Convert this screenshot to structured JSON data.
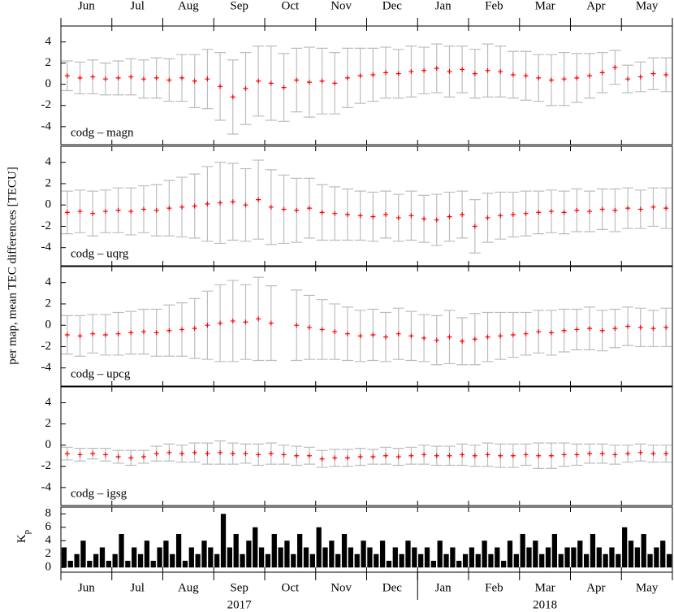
{
  "y_label": "per map, mean TEC differences [TECU]",
  "x_axis": {
    "xlim": [
      0,
      12
    ],
    "xticks": [
      0,
      1,
      2,
      3,
      4,
      5,
      6,
      7,
      8,
      9,
      10,
      11,
      12
    ],
    "month_labels": [
      {
        "value": 0.5,
        "label": "Jun"
      },
      {
        "value": 1.5,
        "label": "Jul"
      },
      {
        "value": 2.5,
        "label": "Aug"
      },
      {
        "value": 3.5,
        "label": "Sep"
      },
      {
        "value": 4.5,
        "label": "Oct"
      },
      {
        "value": 5.5,
        "label": "Nov"
      },
      {
        "value": 6.5,
        "label": "Dec"
      },
      {
        "value": 7.5,
        "label": "Jan"
      },
      {
        "value": 8.5,
        "label": "Feb"
      },
      {
        "value": 9.5,
        "label": "Mar"
      },
      {
        "value": 10.5,
        "label": "Apr"
      },
      {
        "value": 11.5,
        "label": "May"
      }
    ],
    "years": [
      {
        "value": 3.5,
        "label": "2017"
      },
      {
        "value": 9.5,
        "label": "2018"
      }
    ],
    "year_divider": 7
  },
  "chart_data": [
    {
      "type": "errorbar",
      "label": "codg – magn",
      "color": "#ff0000",
      "error_color": "#bdbdbd",
      "ylim": [
        -5.7,
        5.5
      ],
      "yticks": [
        -4,
        -2,
        0,
        2,
        4
      ],
      "x": [
        0.125,
        0.375,
        0.625,
        0.875,
        1.125,
        1.375,
        1.625,
        1.875,
        2.125,
        2.375,
        2.625,
        2.875,
        3.125,
        3.375,
        3.625,
        3.875,
        4.125,
        4.375,
        4.625,
        4.875,
        5.125,
        5.375,
        5.625,
        5.875,
        6.125,
        6.375,
        6.625,
        6.875,
        7.125,
        7.375,
        7.625,
        7.875,
        8.125,
        8.375,
        8.625,
        8.875,
        9.125,
        9.375,
        9.625,
        9.875,
        10.125,
        10.375,
        10.625,
        10.875,
        11.125,
        11.375,
        11.625,
        11.875
      ],
      "values": [
        0.8,
        0.6,
        0.7,
        0.5,
        0.6,
        0.7,
        0.5,
        0.6,
        0.4,
        0.6,
        0.3,
        0.5,
        -0.2,
        -1.2,
        -0.4,
        0.3,
        0.1,
        -0.3,
        0.4,
        0.2,
        0.3,
        0.1,
        0.6,
        0.8,
        0.9,
        1.1,
        1.0,
        1.2,
        1.3,
        1.5,
        1.2,
        1.4,
        1.0,
        1.3,
        1.2,
        0.9,
        0.8,
        0.6,
        0.4,
        0.5,
        0.6,
        0.8,
        1.1,
        1.6,
        0.5,
        0.7,
        1.0,
        0.9
      ],
      "errors": [
        1.4,
        1.5,
        1.6,
        1.5,
        1.6,
        1.7,
        1.8,
        1.9,
        2.0,
        2.2,
        2.5,
        2.8,
        3.2,
        3.5,
        3.4,
        3.3,
        3.5,
        3.2,
        3.0,
        3.3,
        3.1,
        2.9,
        2.8,
        2.6,
        2.5,
        2.4,
        2.3,
        2.4,
        2.2,
        2.3,
        2.4,
        2.2,
        2.3,
        2.5,
        2.4,
        2.2,
        2.3,
        2.2,
        2.4,
        2.5,
        2.3,
        2.1,
        1.9,
        1.6,
        1.3,
        1.4,
        1.5,
        1.6
      ]
    },
    {
      "type": "errorbar",
      "label": "codg – uqrg",
      "color": "#ff0000",
      "error_color": "#bdbdbd",
      "ylim": [
        -5.7,
        5.5
      ],
      "yticks": [
        -4,
        -2,
        0,
        2,
        4
      ],
      "x": [
        0.125,
        0.375,
        0.625,
        0.875,
        1.125,
        1.375,
        1.625,
        1.875,
        2.125,
        2.375,
        2.625,
        2.875,
        3.125,
        3.375,
        3.625,
        3.875,
        4.125,
        4.375,
        4.625,
        4.875,
        5.125,
        5.375,
        5.625,
        5.875,
        6.125,
        6.375,
        6.625,
        6.875,
        7.125,
        7.375,
        7.625,
        7.875,
        8.125,
        8.375,
        8.625,
        8.875,
        9.125,
        9.375,
        9.625,
        9.875,
        10.125,
        10.375,
        10.625,
        10.875,
        11.125,
        11.375,
        11.625,
        11.875
      ],
      "values": [
        -0.7,
        -0.6,
        -0.8,
        -0.6,
        -0.5,
        -0.6,
        -0.4,
        -0.5,
        -0.3,
        -0.2,
        -0.1,
        0.1,
        0.2,
        0.3,
        0.0,
        0.5,
        -0.2,
        -0.4,
        -0.5,
        -0.3,
        -0.7,
        -0.8,
        -0.9,
        -1.0,
        -1.1,
        -0.9,
        -1.2,
        -1.0,
        -1.3,
        -1.4,
        -1.1,
        -0.9,
        -2.0,
        -1.2,
        -1.0,
        -0.9,
        -0.8,
        -0.7,
        -0.6,
        -0.7,
        -0.5,
        -0.6,
        -0.4,
        -0.5,
        -0.3,
        -0.4,
        -0.2,
        -0.3
      ],
      "errors": [
        2.0,
        2.0,
        2.1,
        2.0,
        2.1,
        2.2,
        2.2,
        2.4,
        2.6,
        2.8,
        3.0,
        3.5,
        3.8,
        3.6,
        3.4,
        3.7,
        3.5,
        3.2,
        3.0,
        2.8,
        2.6,
        2.5,
        2.4,
        2.3,
        2.3,
        2.2,
        2.2,
        2.3,
        2.2,
        2.4,
        2.3,
        2.2,
        2.5,
        2.3,
        2.2,
        2.1,
        2.1,
        2.0,
        2.0,
        2.0,
        2.0,
        1.9,
        1.9,
        2.0,
        1.9,
        1.8,
        1.8,
        1.9
      ]
    },
    {
      "type": "errorbar",
      "label": "codg – upcg",
      "color": "#ff0000",
      "error_color": "#bdbdbd",
      "ylim": [
        -5.7,
        5.5
      ],
      "yticks": [
        -4,
        -2,
        0,
        2,
        4
      ],
      "x": [
        0.125,
        0.375,
        0.625,
        0.875,
        1.125,
        1.375,
        1.625,
        1.875,
        2.125,
        2.375,
        2.625,
        2.875,
        3.125,
        3.375,
        3.625,
        3.875,
        4.125,
        4.375,
        4.625,
        4.875,
        5.125,
        5.375,
        5.625,
        5.875,
        6.125,
        6.375,
        6.625,
        6.875,
        7.125,
        7.375,
        7.625,
        7.875,
        8.125,
        8.375,
        8.625,
        8.875,
        9.125,
        9.375,
        9.625,
        9.875,
        10.125,
        10.375,
        10.625,
        10.875,
        11.125,
        11.375,
        11.625,
        11.875
      ],
      "values": [
        -0.9,
        -1.0,
        -0.8,
        -0.9,
        -0.8,
        -0.7,
        -0.6,
        -0.7,
        -0.5,
        -0.4,
        -0.3,
        0.0,
        0.2,
        0.4,
        0.3,
        0.6,
        0.2,
        null,
        0.0,
        -0.2,
        -0.4,
        -0.6,
        -0.8,
        -1.0,
        -0.9,
        -1.1,
        -0.8,
        -1.0,
        -1.2,
        -1.4,
        -1.1,
        -1.5,
        -1.3,
        -1.1,
        -1.0,
        -0.9,
        -0.8,
        -0.6,
        -0.7,
        -0.5,
        -0.4,
        -0.3,
        -0.5,
        -0.3,
        -0.1,
        -0.2,
        -0.3,
        -0.2
      ],
      "errors": [
        1.8,
        1.9,
        1.8,
        1.9,
        2.0,
        2.0,
        2.1,
        2.2,
        2.4,
        2.5,
        2.8,
        3.2,
        3.6,
        3.8,
        3.5,
        3.9,
        3.5,
        null,
        3.3,
        3.0,
        2.8,
        2.6,
        2.5,
        2.4,
        2.4,
        2.3,
        2.4,
        2.3,
        2.2,
        2.3,
        2.5,
        2.2,
        2.4,
        2.3,
        2.2,
        2.1,
        2.0,
        2.0,
        2.1,
        2.0,
        1.9,
        2.0,
        1.9,
        1.8,
        1.8,
        1.8,
        1.7,
        1.8
      ]
    },
    {
      "type": "errorbar",
      "label": "codg – igsg",
      "color": "#ff0000",
      "error_color": "#bdbdbd",
      "ylim": [
        -5.7,
        5.5
      ],
      "yticks": [
        -4,
        -2,
        0,
        2,
        4
      ],
      "x": [
        0.125,
        0.375,
        0.625,
        0.875,
        1.125,
        1.375,
        1.625,
        1.875,
        2.125,
        2.375,
        2.625,
        2.875,
        3.125,
        3.375,
        3.625,
        3.875,
        4.125,
        4.375,
        4.625,
        4.875,
        5.125,
        5.375,
        5.625,
        5.875,
        6.125,
        6.375,
        6.625,
        6.875,
        7.125,
        7.375,
        7.625,
        7.875,
        8.125,
        8.375,
        8.625,
        8.875,
        9.125,
        9.375,
        9.625,
        9.875,
        10.125,
        10.375,
        10.625,
        10.875,
        11.125,
        11.375,
        11.625,
        11.875
      ],
      "values": [
        -0.8,
        -0.9,
        -0.8,
        -0.9,
        -1.1,
        -1.2,
        -1.1,
        -0.8,
        -0.7,
        -0.8,
        -0.7,
        -0.8,
        -0.7,
        -0.8,
        -0.8,
        -0.9,
        -0.8,
        -0.9,
        -1.0,
        -1.0,
        -1.3,
        -1.2,
        -1.2,
        -1.1,
        -1.1,
        -1.0,
        -1.1,
        -1.0,
        -0.9,
        -1.0,
        -1.0,
        -0.9,
        -1.0,
        -0.9,
        -1.0,
        -1.0,
        -0.9,
        -1.0,
        -1.0,
        -0.9,
        -0.9,
        -0.8,
        -0.8,
        -0.9,
        -0.8,
        -0.7,
        -0.8,
        -0.8
      ],
      "errors": [
        0.6,
        0.6,
        0.5,
        0.6,
        0.6,
        0.7,
        0.6,
        0.7,
        0.8,
        0.8,
        0.9,
        1.0,
        1.1,
        1.0,
        0.9,
        1.0,
        1.0,
        0.9,
        0.9,
        0.8,
        0.8,
        0.8,
        0.8,
        0.8,
        0.7,
        0.8,
        0.8,
        0.8,
        0.9,
        0.9,
        0.9,
        1.0,
        1.0,
        1.1,
        1.1,
        1.1,
        1.0,
        1.2,
        1.2,
        1.1,
        1.0,
        0.9,
        0.9,
        0.9,
        0.8,
        0.8,
        0.8,
        0.8
      ]
    },
    {
      "type": "bar",
      "y_label": "K",
      "y_label_sub": "p",
      "color": "#000000",
      "ylim": [
        -0.7,
        9
      ],
      "yticks": [
        0,
        2,
        4,
        6,
        8
      ],
      "x": [
        0.0625,
        0.1875,
        0.3125,
        0.4375,
        0.5625,
        0.6875,
        0.8125,
        0.9375,
        1.0625,
        1.1875,
        1.3125,
        1.4375,
        1.5625,
        1.6875,
        1.8125,
        1.9375,
        2.0625,
        2.1875,
        2.3125,
        2.4375,
        2.5625,
        2.6875,
        2.8125,
        2.9375,
        3.0625,
        3.1875,
        3.3125,
        3.4375,
        3.5625,
        3.6875,
        3.8125,
        3.9375,
        4.0625,
        4.1875,
        4.3125,
        4.4375,
        4.5625,
        4.6875,
        4.8125,
        4.9375,
        5.0625,
        5.1875,
        5.3125,
        5.4375,
        5.5625,
        5.6875,
        5.8125,
        5.9375,
        6.0625,
        6.1875,
        6.3125,
        6.4375,
        6.5625,
        6.6875,
        6.8125,
        6.9375,
        7.0625,
        7.1875,
        7.3125,
        7.4375,
        7.5625,
        7.6875,
        7.8125,
        7.9375,
        8.0625,
        8.1875,
        8.3125,
        8.4375,
        8.5625,
        8.6875,
        8.8125,
        8.9375,
        9.0625,
        9.1875,
        9.3125,
        9.4375,
        9.5625,
        9.6875,
        9.8125,
        9.9375,
        10.0625,
        10.1875,
        10.3125,
        10.4375,
        10.5625,
        10.6875,
        10.8125,
        10.9375,
        11.0625,
        11.1875,
        11.3125,
        11.4375,
        11.5625,
        11.6875,
        11.8125,
        11.9375
      ],
      "values": [
        3,
        1,
        2,
        4,
        1,
        2,
        3,
        1,
        2,
        5,
        1,
        3,
        2,
        4,
        1,
        3,
        4,
        2,
        5,
        1,
        3,
        2,
        4,
        3,
        2,
        8,
        3,
        5,
        2,
        4,
        6,
        3,
        2,
        5,
        3,
        4,
        2,
        5,
        3,
        2,
        6,
        3,
        4,
        2,
        5,
        3,
        2,
        4,
        3,
        2,
        4,
        1,
        3,
        2,
        4,
        3,
        2,
        3,
        1,
        4,
        2,
        3,
        1,
        2,
        3,
        2,
        4,
        2,
        3,
        1,
        4,
        2,
        5,
        3,
        4,
        2,
        3,
        5,
        2,
        3,
        3,
        4,
        2,
        5,
        3,
        2,
        3,
        2,
        6,
        4,
        3,
        5,
        2,
        3,
        4,
        2
      ]
    }
  ]
}
